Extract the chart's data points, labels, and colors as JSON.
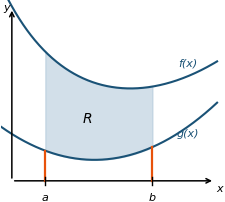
{
  "xlim": [
    0,
    10
  ],
  "ylim": [
    0,
    9
  ],
  "figsize": [
    2.25,
    2.03
  ],
  "dpi": 100,
  "a": 2.0,
  "b": 6.8,
  "bg_color": "#ffffff",
  "curve_color": "#1a5276",
  "shade_color": "#aec6d8",
  "shade_alpha": 0.55,
  "line_color": "#e8520a",
  "label_f": "f(x)",
  "label_g": "g(x)",
  "label_R": "R",
  "label_a": "a",
  "label_b": "b",
  "label_x": "x",
  "label_y": "y",
  "curve_lw": 1.5,
  "axis_x0": 0.5,
  "axis_y0": 0.4
}
